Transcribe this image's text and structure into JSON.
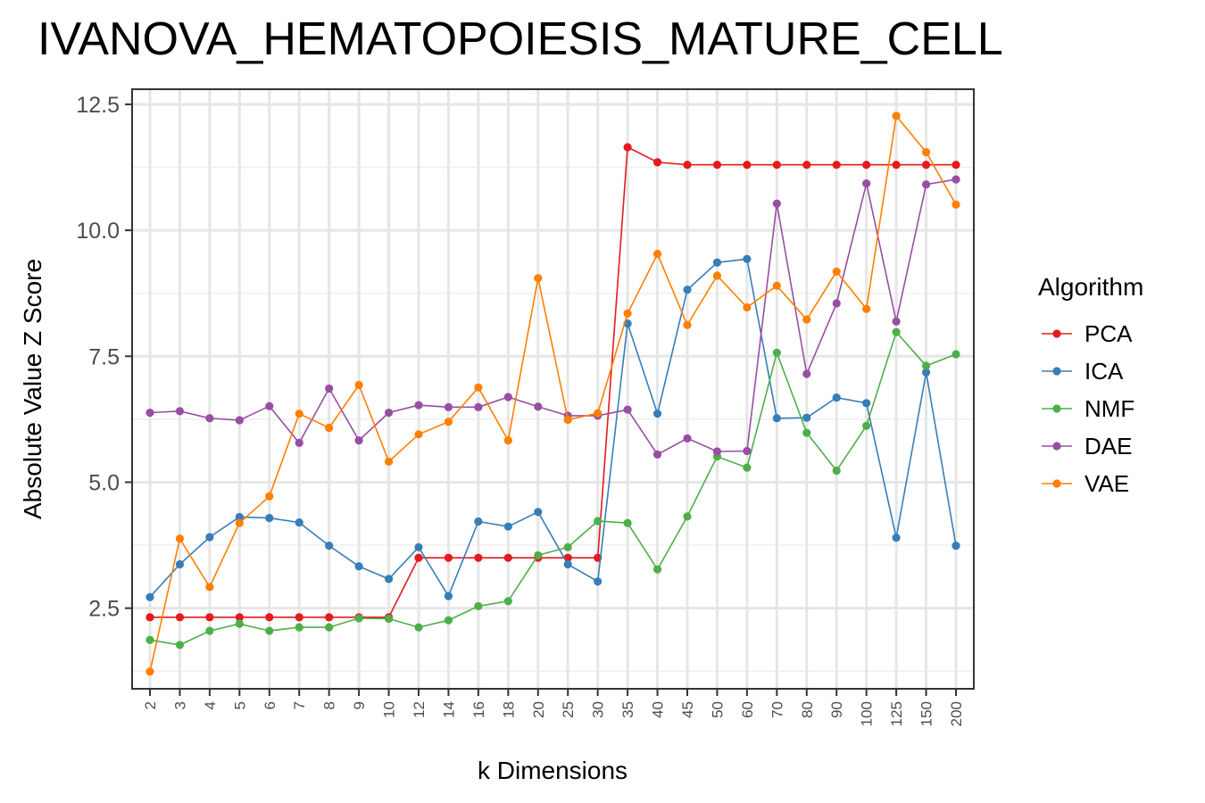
{
  "chart_data": {
    "type": "line",
    "title": "IVANOVA_HEMATOPOIESIS_MATURE_CELL",
    "xlabel": "k Dimensions",
    "ylabel": "Absolute Value Z Score",
    "categories": [
      "2",
      "3",
      "4",
      "5",
      "6",
      "7",
      "8",
      "9",
      "10",
      "12",
      "14",
      "16",
      "18",
      "20",
      "25",
      "30",
      "35",
      "40",
      "45",
      "50",
      "60",
      "70",
      "80",
      "90",
      "100",
      "125",
      "150",
      "200"
    ],
    "y_ticks": [
      "2.5",
      "5.0",
      "7.5",
      "10.0",
      "12.5"
    ],
    "y_tick_values": [
      2.5,
      5.0,
      7.5,
      10.0,
      12.5
    ],
    "ylim": [
      0.9,
      12.8
    ],
    "grid": true,
    "legend": {
      "title": "Algorithm",
      "position": "right"
    },
    "series": [
      {
        "name": "PCA",
        "color": "#e41a1c",
        "values": [
          2.32,
          2.32,
          2.32,
          2.32,
          2.32,
          2.32,
          2.32,
          2.32,
          2.32,
          3.5,
          3.5,
          3.5,
          3.5,
          3.5,
          3.5,
          3.5,
          11.65,
          11.35,
          11.3,
          11.3,
          11.3,
          11.3,
          11.3,
          11.3,
          11.3,
          11.3,
          11.3,
          11.3
        ]
      },
      {
        "name": "ICA",
        "color": "#377eb8",
        "values": [
          2.72,
          3.37,
          3.91,
          4.31,
          4.29,
          4.2,
          3.74,
          3.33,
          3.08,
          3.71,
          2.74,
          4.22,
          4.12,
          4.41,
          3.37,
          3.03,
          8.15,
          6.36,
          8.82,
          9.36,
          9.43,
          6.27,
          6.28,
          6.68,
          6.57,
          3.9,
          7.18,
          3.74
        ]
      },
      {
        "name": "NMF",
        "color": "#4daf4a",
        "values": [
          1.87,
          1.77,
          2.05,
          2.19,
          2.05,
          2.12,
          2.12,
          2.3,
          2.29,
          2.12,
          2.26,
          2.54,
          2.64,
          3.55,
          3.71,
          4.23,
          4.19,
          3.27,
          4.32,
          5.51,
          5.29,
          7.57,
          5.98,
          5.23,
          6.12,
          7.98,
          7.31,
          7.54
        ]
      },
      {
        "name": "DAE",
        "color": "#984ea3",
        "values": [
          6.38,
          6.41,
          6.27,
          6.23,
          6.51,
          5.78,
          6.86,
          5.83,
          6.38,
          6.53,
          6.49,
          6.49,
          6.69,
          6.5,
          6.32,
          6.32,
          6.44,
          5.55,
          5.87,
          5.61,
          5.62,
          10.53,
          7.15,
          8.55,
          10.93,
          8.19,
          10.91,
          11.01
        ]
      },
      {
        "name": "VAE",
        "color": "#ff7f00",
        "values": [
          1.24,
          3.88,
          2.92,
          4.19,
          4.72,
          6.36,
          6.08,
          6.93,
          5.41,
          5.95,
          6.2,
          6.88,
          5.83,
          9.05,
          6.24,
          6.37,
          8.35,
          9.53,
          8.12,
          9.1,
          8.47,
          8.9,
          8.23,
          9.18,
          8.44,
          12.27,
          11.55,
          10.51
        ]
      }
    ]
  }
}
